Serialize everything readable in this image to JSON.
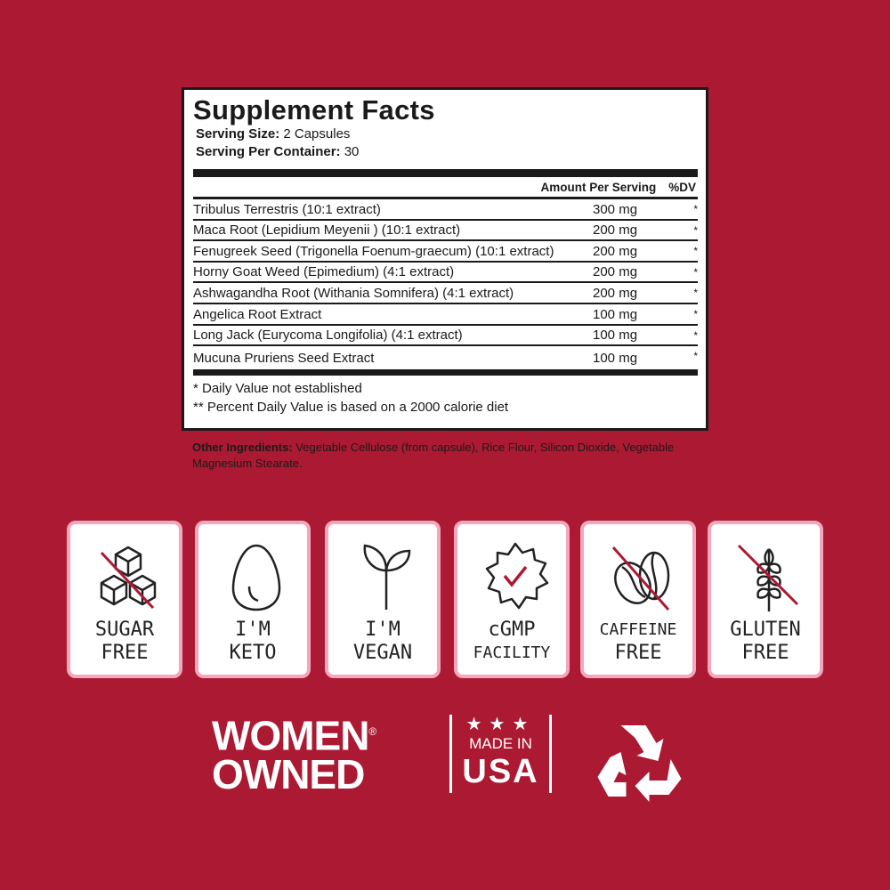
{
  "facts": {
    "title": "Supplement Facts",
    "serving_size_label": "Serving Size:",
    "serving_size": " 2 Capsules",
    "servings_label": "Serving Per Container:",
    "servings": " 30",
    "col_amount": "Amount Per Serving",
    "col_dv": "%DV",
    "ingredients": [
      {
        "name": "Tribulus Terrestris (10:1 extract)",
        "amount": "300 mg",
        "dv": "*"
      },
      {
        "name": "Maca Root (Lepidium Meyenii ) (10:1 extract)",
        "amount": "200 mg",
        "dv": "*"
      },
      {
        "name": "Fenugreek Seed (Trigonella Foenum-graecum) (10:1 extract)",
        "amount": "200 mg",
        "dv": "*"
      },
      {
        "name": "Horny Goat Weed (Epimedium) (4:1 extract)",
        "amount": "200 mg",
        "dv": "*"
      },
      {
        "name": "Ashwagandha Root (Withania Somnifera) (4:1 extract)",
        "amount": "200 mg",
        "dv": "*"
      },
      {
        "name": "Angelica Root Extract",
        "amount": "100 mg",
        "dv": "*"
      },
      {
        "name": "Long Jack (Eurycoma Longifolia) (4:1 extract)",
        "amount": "100 mg",
        "dv": "*"
      },
      {
        "name": "Mucuna Pruriens Seed Extract",
        "amount": "100 mg",
        "dv": "*"
      }
    ],
    "footnote1": "* Daily Value not established",
    "footnote2": "** Percent Daily Value is based on a 2000 calorie diet"
  },
  "other": {
    "label": "Other Ingredients:",
    "text": " Vegetable Cellulose (from capsule), Rice Flour, Silicon Dioxide, Vegetable Magnesium Stearate."
  },
  "badges": [
    {
      "icon": "sugar-cubes-crossed-icon",
      "line1": "SUGAR",
      "line2": "FREE"
    },
    {
      "icon": "egg-icon",
      "line1": "I'M",
      "line2": "KETO"
    },
    {
      "icon": "sprout-icon",
      "line1": "I'M",
      "line2": "VEGAN"
    },
    {
      "icon": "check-seal-icon",
      "line1": "cGMP",
      "line2": "FACILITY"
    },
    {
      "icon": "coffee-bean-crossed-icon",
      "line1": "CAFFEINE",
      "line2": "FREE"
    },
    {
      "icon": "wheat-crossed-icon",
      "line1": "GLUTEN",
      "line2": "FREE"
    }
  ],
  "logos": {
    "women_line1": "WOMEN",
    "women_reg": "®",
    "women_line2": "OWNED",
    "usa_stars": "★★★",
    "usa_made": "MADE IN",
    "usa_usa": "USA",
    "recycle": "recycle-icon"
  },
  "colors": {
    "background": "#AB1A32",
    "badge_border": "#F3A7BC",
    "accent": "#AB1A32"
  }
}
